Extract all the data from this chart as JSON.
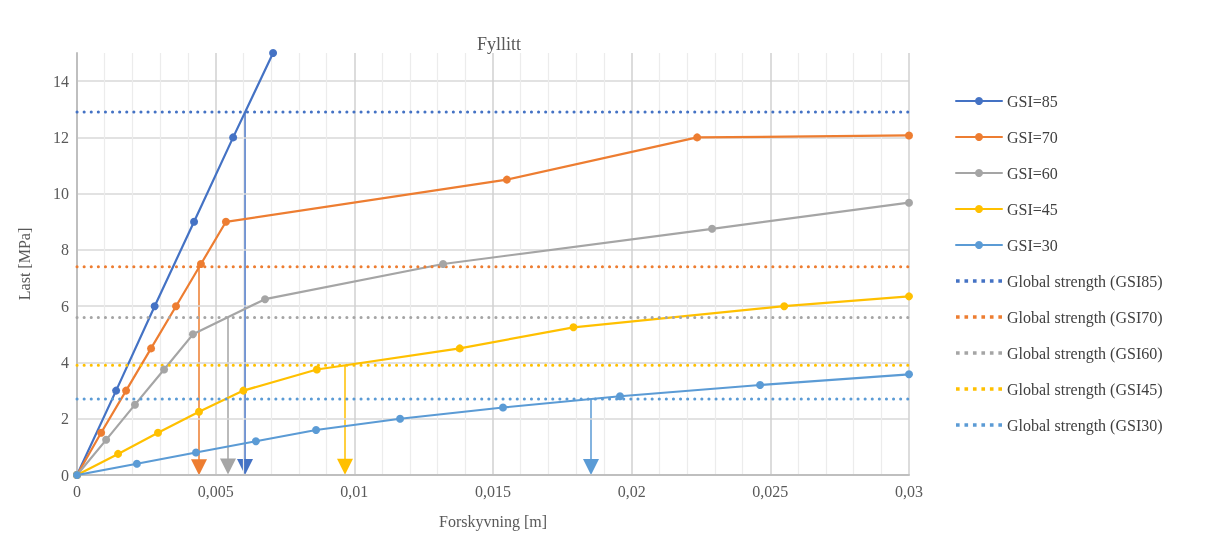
{
  "chart_data": {
    "type": "line",
    "title": "Fyllitt",
    "xlabel": "Forskyvning [m]",
    "ylabel": "Last [MPa]",
    "xlim": [
      0,
      0.03
    ],
    "xticks": [
      0,
      {
        "value": 0.005,
        "label": "0,005"
      },
      {
        "value": 0.01,
        "label": "0,01"
      },
      {
        "value": 0.015,
        "label": "0,015"
      },
      {
        "value": 0.02,
        "label": "0,02"
      },
      {
        "value": 0.025,
        "label": "0,025"
      },
      {
        "value": 0.03,
        "label": "0,03"
      }
    ],
    "ylim": [
      0,
      15
    ],
    "yticks": [
      0,
      2,
      4,
      6,
      8,
      10,
      12,
      14
    ],
    "grid": true,
    "legend": "right",
    "marker": "circle",
    "line_style": "solid",
    "series": [
      {
        "name": "GSI=85",
        "color": "#4472c4",
        "x": [
          0,
          0.00141,
          0.0028,
          0.00422,
          0.00563,
          0.00707
        ],
        "values": [
          0,
          3,
          6,
          9,
          12,
          15
        ]
      },
      {
        "name": "GSI=70",
        "color": "#ed7d31",
        "x": [
          0,
          0.00087,
          0.00177,
          0.00267,
          0.00357,
          0.00447,
          0.00537,
          0.0155,
          0.02236,
          0.03
        ],
        "values": [
          0,
          1.5,
          3,
          4.5,
          6,
          7.5,
          9,
          10.5,
          12,
          12.07
        ]
      },
      {
        "name": "GSI=60",
        "color": "#a5a5a5",
        "x": [
          0,
          0.00105,
          0.00209,
          0.00314,
          0.00418,
          0.00678,
          0.0132,
          0.0229,
          0.03
        ],
        "values": [
          0,
          1.25,
          2.5,
          3.75,
          5,
          6.25,
          7.5,
          8.75,
          9.68
        ]
      },
      {
        "name": "GSI=45",
        "color": "#ffc000",
        "x": [
          0,
          0.00148,
          0.00292,
          0.0044,
          0.006,
          0.00865,
          0.0138,
          0.0179,
          0.0255,
          0.03
        ],
        "values": [
          0,
          0.75,
          1.5,
          2.25,
          3,
          3.75,
          4.5,
          5.25,
          6,
          6.35
        ]
      },
      {
        "name": "GSI=30",
        "color": "#5b9bd5",
        "x": [
          0,
          0.00216,
          0.00429,
          0.00645,
          0.00862,
          0.01165,
          0.01536,
          0.01958,
          0.02463,
          0.03
        ],
        "values": [
          0,
          0.4,
          0.8,
          1.2,
          1.6,
          2,
          2.4,
          2.8,
          3.2,
          3.58
        ]
      },
      {
        "name": "Global strength (GSI85)",
        "color": "#4472c4",
        "line_style": "dotted",
        "marker": "none",
        "x": [
          0,
          0.03
        ],
        "values": [
          12.9,
          12.9
        ]
      },
      {
        "name": "Global strength (GSI70)",
        "color": "#ed7d31",
        "line_style": "dotted",
        "marker": "none",
        "x": [
          0,
          0.03
        ],
        "values": [
          7.4,
          7.4
        ]
      },
      {
        "name": "Global strength (GSI60)",
        "color": "#a5a5a5",
        "line_style": "dotted",
        "marker": "none",
        "x": [
          0,
          0.03
        ],
        "values": [
          5.6,
          5.6
        ]
      },
      {
        "name": "Global strength (GSI45)",
        "color": "#ffc000",
        "line_style": "dotted",
        "marker": "none",
        "x": [
          0,
          0.03
        ],
        "values": [
          3.9,
          3.9
        ]
      },
      {
        "name": "Global strength (GSI30)",
        "color": "#5b9bd5",
        "line_style": "dotted",
        "marker": "none",
        "x": [
          0,
          0.03
        ],
        "values": [
          2.7,
          2.7
        ]
      }
    ]
  }
}
